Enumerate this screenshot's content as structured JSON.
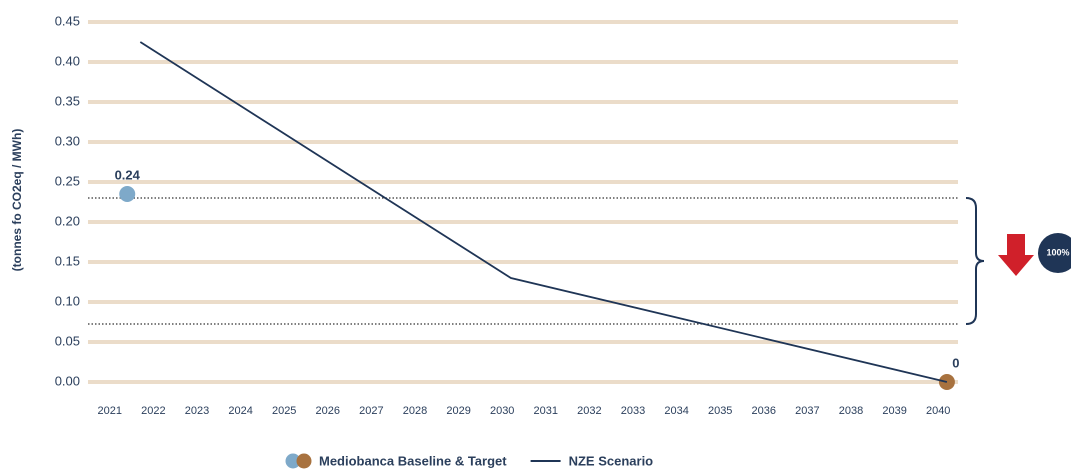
{
  "chart_data": {
    "type": "line",
    "y_label": "(tonnes fo CO2eq / MWh)",
    "xlim": [
      2020.5,
      2040.5
    ],
    "xticks": [
      2021,
      2022,
      2023,
      2024,
      2025,
      2026,
      2027,
      2028,
      2029,
      2030,
      2031,
      2032,
      2033,
      2034,
      2035,
      2036,
      2037,
      2038,
      2039,
      2040
    ],
    "ylim": [
      0,
      0.45
    ],
    "yticks": [
      {
        "value": 0,
        "label": "0.00"
      },
      0.05,
      {
        "value": 0.1,
        "label": "0.10"
      },
      0.15,
      {
        "value": 0.2,
        "label": "0.20"
      },
      0.25,
      {
        "value": 0.3,
        "label": "0.30"
      },
      0.35,
      {
        "value": 0.4,
        "label": "0.40"
      },
      0.45
    ],
    "grid": true,
    "grid_color": "#ebdcc9",
    "series": [
      {
        "name": "Mediobanca Baseline & Target",
        "type": "scatter",
        "x": [
          2021.4,
          2040.2
        ],
        "values": [
          0.235,
          0
        ],
        "value_labels": [
          "0.24",
          "0"
        ],
        "colors": [
          "#7ea9c9",
          "#a8723f"
        ]
      },
      {
        "name": "NZE Scenario",
        "type": "line",
        "x": [
          2021.7,
          2030.2,
          2040.2
        ],
        "values": [
          0.425,
          0.13,
          0
        ],
        "color": "#1f3556"
      }
    ],
    "reference_lines": [
      0.23,
      0.0725
    ],
    "annotation": "100%"
  }
}
